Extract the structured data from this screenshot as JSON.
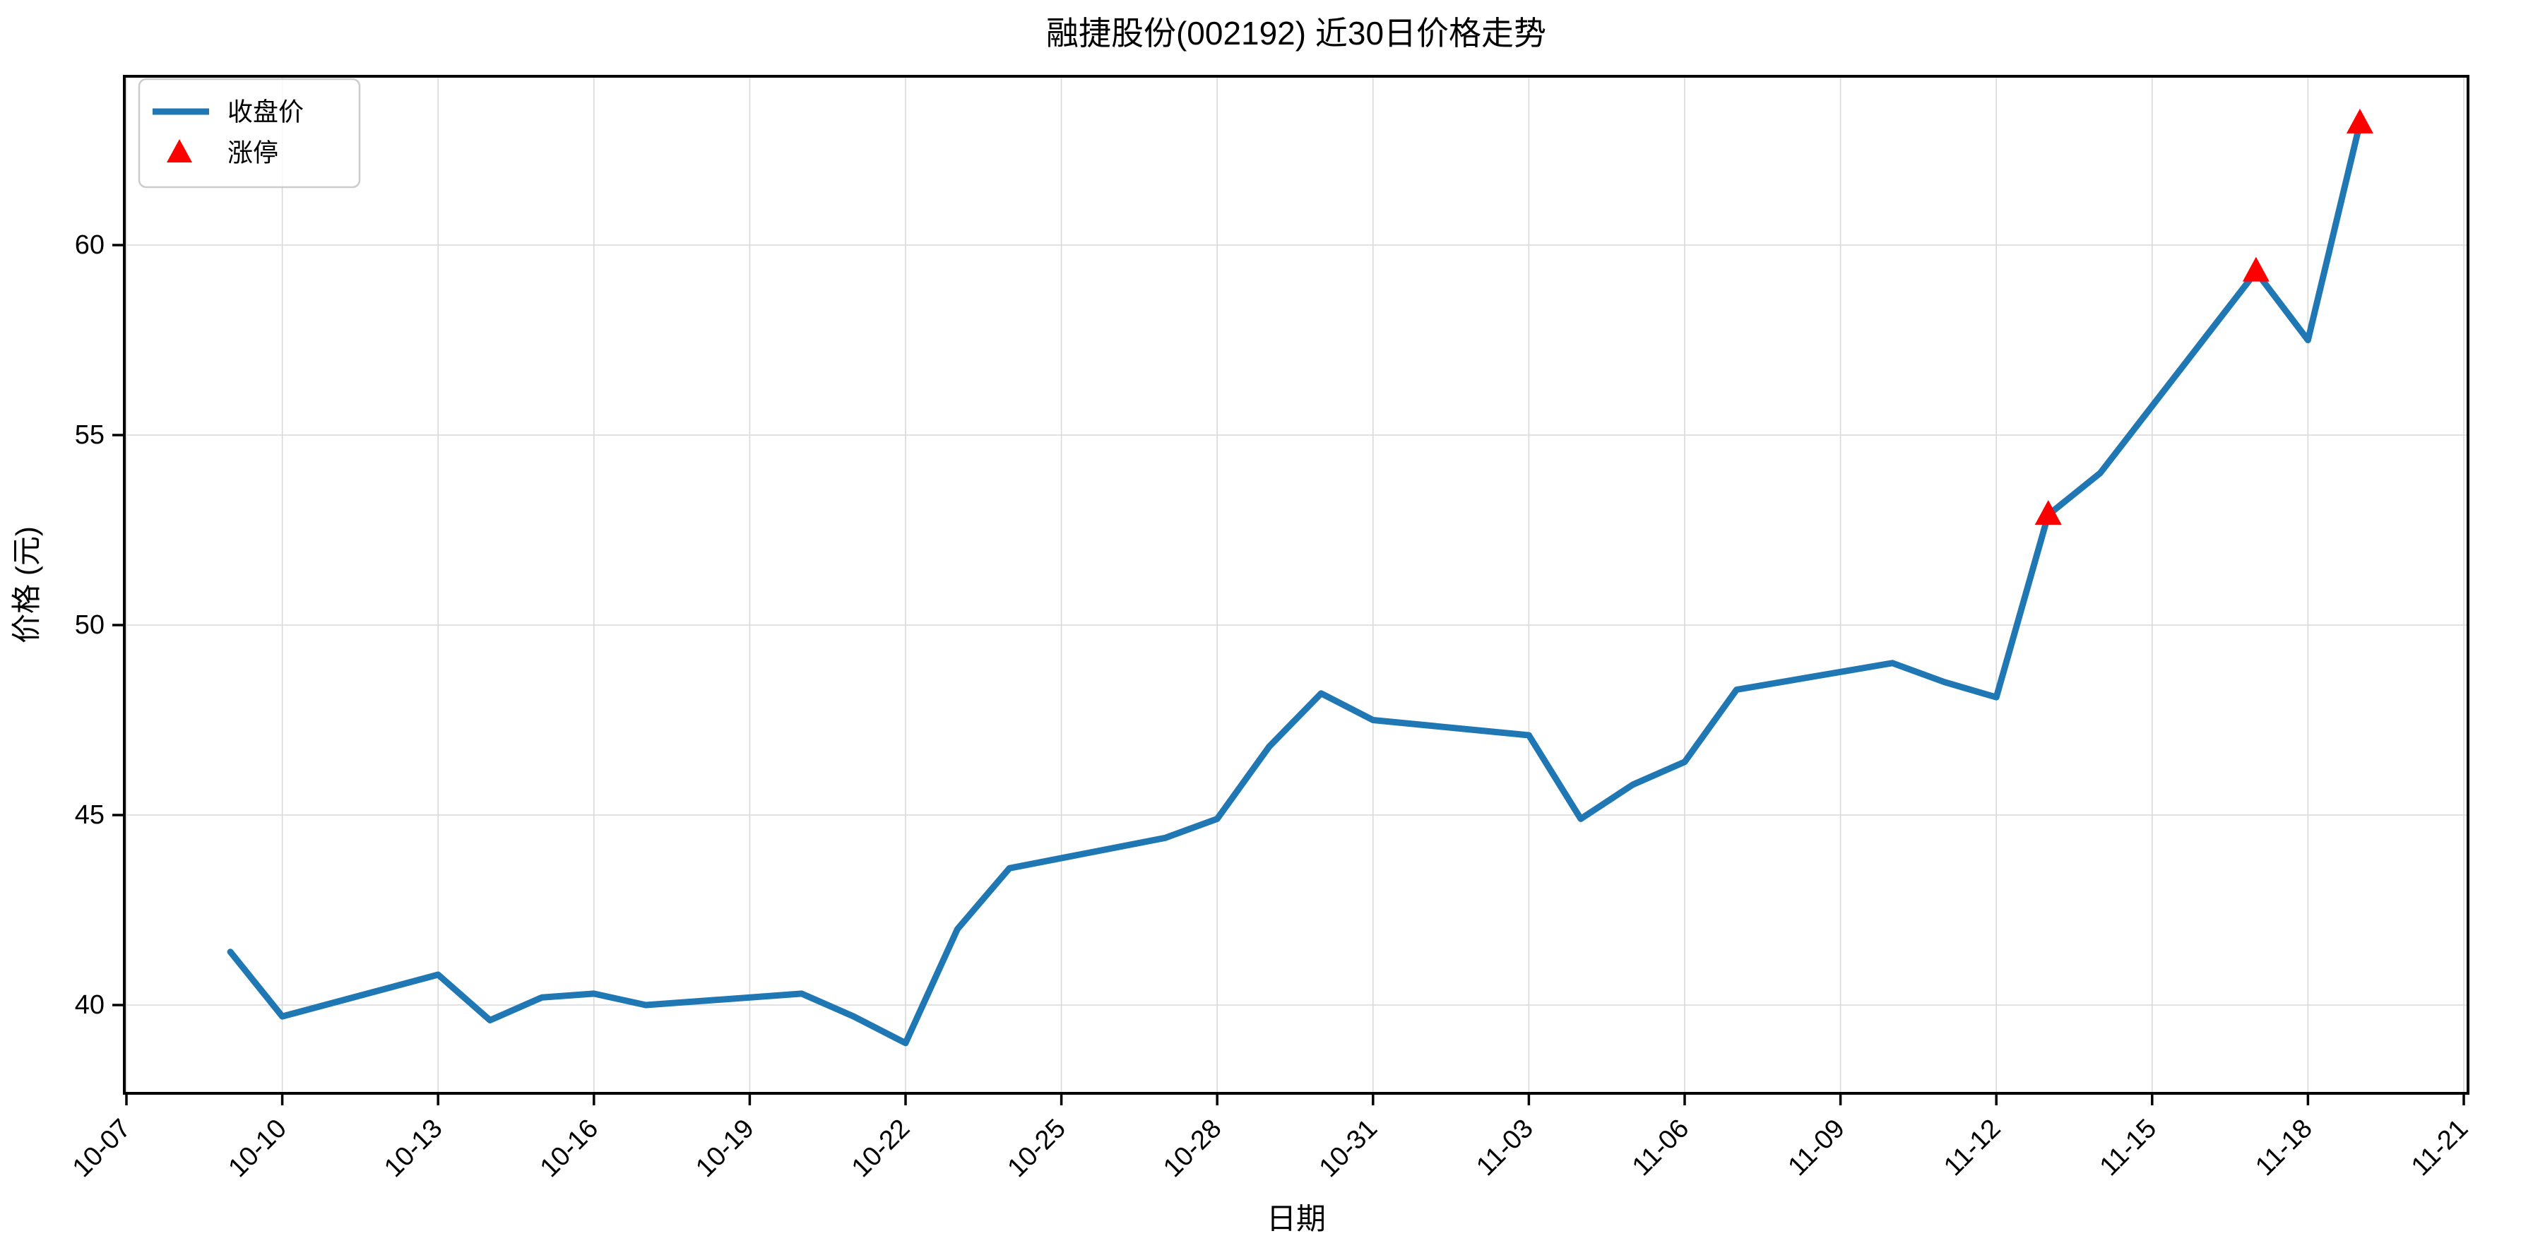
{
  "page": {
    "background": "#ffffff"
  },
  "chart": {
    "title": "融捷股份(002192) 近30日价格走势",
    "xlabel": "日期",
    "ylabel": "价格 (元)",
    "legend": {
      "close_label": "收盘价",
      "limit_up_label": "涨停"
    },
    "colors": {
      "close_line": "#1f77b4",
      "limit_up_marker": "#ff0000",
      "grid": "#d9d9d9",
      "spine": "#000000",
      "legend_border": "#cccccc",
      "text": "#000000",
      "background": "#ffffff"
    }
  },
  "chart_data": {
    "type": "line",
    "title": "融捷股份(002192) 近30日价格走势",
    "xlabel": "日期",
    "ylabel": "价格 (元)",
    "grid": true,
    "legend_position": "upper-left",
    "y_ticks": [
      40,
      45,
      50,
      55,
      60
    ],
    "ylim": [
      37.7,
      64.4
    ],
    "x_tick_labels": [
      "10-07",
      "10-10",
      "10-13",
      "10-16",
      "10-19",
      "10-22",
      "10-25",
      "10-28",
      "10-31",
      "11-03",
      "11-06",
      "11-09",
      "11-12",
      "11-15",
      "11-18",
      "11-21"
    ],
    "x_tick_interval_days": 3,
    "series": [
      {
        "name": "收盘价",
        "type": "line",
        "color": "#1f77b4",
        "points": [
          {
            "date": "10-09",
            "close": 41.4,
            "limit_up": false
          },
          {
            "date": "10-10",
            "close": 39.7,
            "limit_up": false
          },
          {
            "date": "10-13",
            "close": 40.8,
            "limit_up": false
          },
          {
            "date": "10-14",
            "close": 39.6,
            "limit_up": false
          },
          {
            "date": "10-15",
            "close": 40.2,
            "limit_up": false
          },
          {
            "date": "10-16",
            "close": 40.3,
            "limit_up": false
          },
          {
            "date": "10-17",
            "close": 40.0,
            "limit_up": false
          },
          {
            "date": "10-20",
            "close": 40.3,
            "limit_up": false
          },
          {
            "date": "10-21",
            "close": 39.7,
            "limit_up": false
          },
          {
            "date": "10-22",
            "close": 39.0,
            "limit_up": false
          },
          {
            "date": "10-23",
            "close": 42.0,
            "limit_up": false
          },
          {
            "date": "10-24",
            "close": 43.6,
            "limit_up": false
          },
          {
            "date": "10-27",
            "close": 44.4,
            "limit_up": false
          },
          {
            "date": "10-28",
            "close": 44.9,
            "limit_up": false
          },
          {
            "date": "10-29",
            "close": 46.8,
            "limit_up": false
          },
          {
            "date": "10-30",
            "close": 48.2,
            "limit_up": false
          },
          {
            "date": "10-31",
            "close": 47.5,
            "limit_up": false
          },
          {
            "date": "11-03",
            "close": 47.1,
            "limit_up": false
          },
          {
            "date": "11-04",
            "close": 44.9,
            "limit_up": false
          },
          {
            "date": "11-05",
            "close": 45.8,
            "limit_up": false
          },
          {
            "date": "11-06",
            "close": 46.4,
            "limit_up": false
          },
          {
            "date": "11-07",
            "close": 48.3,
            "limit_up": false
          },
          {
            "date": "11-10",
            "close": 49.0,
            "limit_up": false
          },
          {
            "date": "11-11",
            "close": 48.5,
            "limit_up": false
          },
          {
            "date": "11-12",
            "close": 48.1,
            "limit_up": false
          },
          {
            "date": "11-13",
            "close": 52.9,
            "limit_up": true
          },
          {
            "date": "11-14",
            "close": 54.0,
            "limit_up": false
          },
          {
            "date": "11-17",
            "close": 59.3,
            "limit_up": true
          },
          {
            "date": "11-18",
            "close": 57.5,
            "limit_up": false
          },
          {
            "date": "11-19",
            "close": 63.2,
            "limit_up": true
          }
        ]
      }
    ],
    "limit_up_dates": [
      "11-13",
      "11-17",
      "11-19"
    ]
  }
}
